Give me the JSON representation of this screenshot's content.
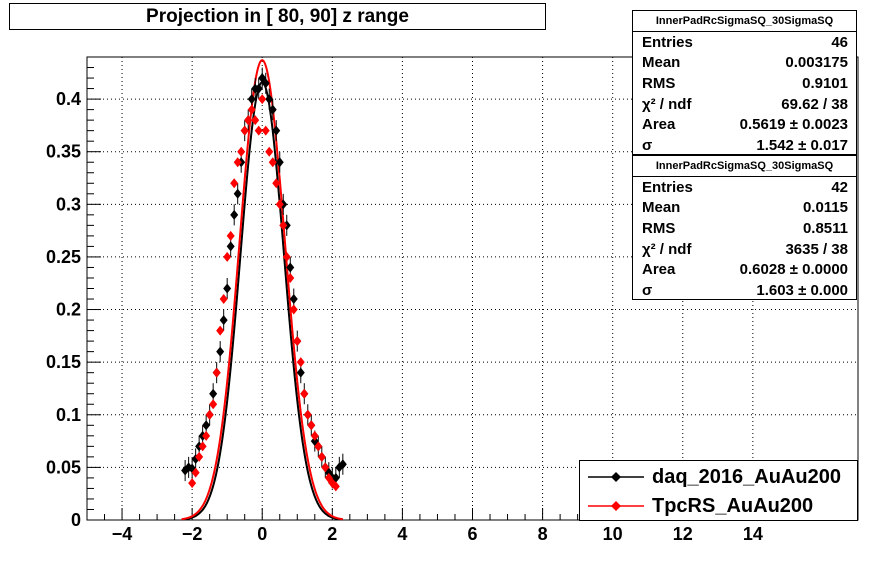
{
  "title": "Projection in [  80,  90] z range",
  "stats": [
    {
      "header": "InnerPadRcSigmaSQ_30SigmaSQ",
      "rows": [
        {
          "label": "Entries",
          "value": "46"
        },
        {
          "label": "Mean",
          "value": "0.003175"
        },
        {
          "label": "RMS",
          "value": "0.9101"
        },
        {
          "label": "χ² / ndf",
          "value": "69.62 / 38"
        },
        {
          "label": "Area",
          "value": "0.5619 ± 0.0023"
        },
        {
          "label": "σ",
          "value": "1.542 ± 0.017"
        }
      ]
    },
    {
      "header": "InnerPadRcSigmaSQ_30SigmaSQ",
      "rows": [
        {
          "label": "Entries",
          "value": "42"
        },
        {
          "label": "Mean",
          "value": "0.0115"
        },
        {
          "label": "RMS",
          "value": "0.8511"
        },
        {
          "label": "χ² / ndf",
          "value": "3635 / 38"
        },
        {
          "label": "Area",
          "value": "0.6028 ± 0.0000"
        },
        {
          "label": "σ",
          "value": "1.603 ± 0.000"
        }
      ]
    }
  ],
  "legend": [
    {
      "label": "daq_2016_AuAu200",
      "color": "#000000"
    },
    {
      "label": "TpcRS_AuAu200",
      "color": "#ff0000"
    }
  ],
  "chart_data": {
    "type": "scatter",
    "xlim": [
      -5,
      17
    ],
    "ylim": [
      0,
      0.44
    ],
    "grid": true,
    "x_ticks": [
      -4,
      -2,
      0,
      2,
      4,
      6,
      8,
      10,
      12,
      14
    ],
    "x_tick_labels": [
      "−4",
      "−2",
      "0",
      "2",
      "4",
      "6",
      "8",
      "10",
      "12",
      "14"
    ],
    "y_ticks": [
      0,
      0.05,
      0.1,
      0.15,
      0.2,
      0.25,
      0.3,
      0.35,
      0.4
    ],
    "y_tick_labels": [
      "0",
      "0.05",
      "0.1",
      "0.15",
      "0.2",
      "0.25",
      "0.3",
      "0.35",
      "0.4"
    ],
    "legend_position": "bottom-right",
    "series": [
      {
        "name": "daq_2016_AuAu200",
        "color": "#000000",
        "marker": "diamond",
        "fit_amplitude": 0.416,
        "fit_sigma": 0.62,
        "x": [
          -2.2,
          -2.1,
          -2.0,
          -1.9,
          -1.8,
          -1.7,
          -1.6,
          -1.5,
          -1.4,
          -1.3,
          -1.2,
          -1.1,
          -1.0,
          -0.9,
          -0.8,
          -0.7,
          -0.6,
          -0.5,
          -0.4,
          -0.3,
          -0.2,
          -0.1,
          0.0,
          0.1,
          0.2,
          0.3,
          0.4,
          0.5,
          0.6,
          0.7,
          0.8,
          0.9,
          1.0,
          1.1,
          1.2,
          1.3,
          1.4,
          1.5,
          1.6,
          1.7,
          1.8,
          1.9,
          2.0,
          2.1,
          2.2,
          2.3
        ],
        "y": [
          0.047,
          0.05,
          0.049,
          0.058,
          0.07,
          0.08,
          0.09,
          0.1,
          0.12,
          0.14,
          0.16,
          0.19,
          0.22,
          0.26,
          0.29,
          0.31,
          0.34,
          0.37,
          0.38,
          0.4,
          0.41,
          0.41,
          0.42,
          0.415,
          0.4,
          0.39,
          0.37,
          0.34,
          0.3,
          0.28,
          0.24,
          0.21,
          0.17,
          0.14,
          0.12,
          0.1,
          0.09,
          0.075,
          0.07,
          0.06,
          0.05,
          0.045,
          0.04,
          0.04,
          0.05,
          0.053
        ],
        "yerr": [
          0.01,
          0.01,
          0.01,
          0.01,
          0.01,
          0.01,
          0.01,
          0.01,
          0.01,
          0.01,
          0.01,
          0.01,
          0.01,
          0.01,
          0.01,
          0.01,
          0.01,
          0.01,
          0.01,
          0.01,
          0.01,
          0.01,
          0.01,
          0.01,
          0.01,
          0.01,
          0.01,
          0.01,
          0.01,
          0.01,
          0.01,
          0.01,
          0.01,
          0.01,
          0.01,
          0.01,
          0.01,
          0.01,
          0.01,
          0.01,
          0.01,
          0.01,
          0.01,
          0.01,
          0.01,
          0.01
        ]
      },
      {
        "name": "TpcRS_AuAu200",
        "color": "#ff0000",
        "marker": "diamond",
        "fit_amplitude": 0.437,
        "fit_sigma": 0.645,
        "x": [
          -2.0,
          -1.9,
          -1.8,
          -1.7,
          -1.6,
          -1.5,
          -1.4,
          -1.3,
          -1.2,
          -1.1,
          -1.0,
          -0.9,
          -0.8,
          -0.7,
          -0.6,
          -0.5,
          -0.4,
          -0.3,
          -0.2,
          -0.1,
          0.0,
          0.1,
          0.2,
          0.3,
          0.4,
          0.5,
          0.6,
          0.7,
          0.8,
          0.9,
          1.0,
          1.1,
          1.2,
          1.3,
          1.4,
          1.5,
          1.6,
          1.7,
          1.8,
          1.9,
          2.0,
          2.1
        ],
        "y": [
          0.035,
          0.045,
          0.06,
          0.07,
          0.08,
          0.1,
          0.11,
          0.14,
          0.18,
          0.21,
          0.25,
          0.27,
          0.32,
          0.34,
          0.35,
          0.37,
          0.38,
          0.39,
          0.38,
          0.37,
          0.4,
          0.37,
          0.35,
          0.34,
          0.32,
          0.3,
          0.28,
          0.25,
          0.23,
          0.2,
          0.17,
          0.15,
          0.12,
          0.1,
          0.09,
          0.08,
          0.07,
          0.06,
          0.05,
          0.04,
          0.035,
          0.032
        ],
        "yerr": []
      }
    ]
  }
}
